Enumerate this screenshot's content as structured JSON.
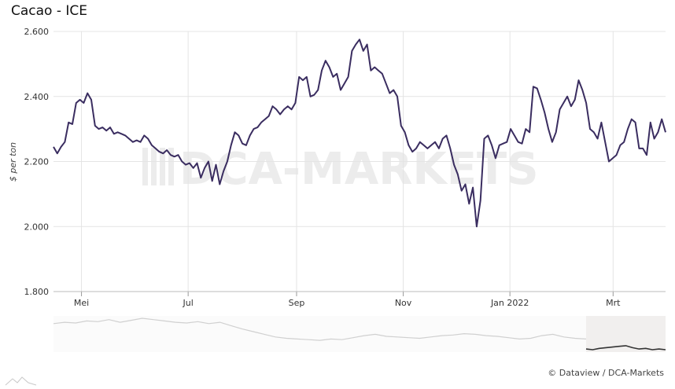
{
  "title": "Cacao - ICE",
  "credit": "© Dataview / DCA-Markets",
  "watermark": "DCA-MARKETS",
  "colors": {
    "line": "#3a2d60",
    "grid": "#e4e4e4",
    "navigator_line": "#d0d0d0",
    "navigator_window": "#f1efee",
    "navigator_selected_line": "#333333"
  },
  "chart_data": {
    "type": "line",
    "ylabel": "$ per ton",
    "ylim": [
      1800,
      2600
    ],
    "yticks": [
      1800,
      2000,
      2200,
      2400,
      2600
    ],
    "ytick_labels": [
      "1.800",
      "2.000",
      "2.200",
      "2.400",
      "2.600"
    ],
    "xtick_labels": [
      "Mei",
      "Jul",
      "Sep",
      "Nov",
      "Jan 2022",
      "Mrt"
    ],
    "grid": true,
    "x_start": "2021-04-15",
    "x_end": "2022-03-31",
    "series": [
      {
        "values": [
          2245,
          2225,
          2245,
          2260,
          2320,
          2315,
          2380,
          2390,
          2380,
          2410,
          2390,
          2310,
          2300,
          2305,
          2295,
          2305,
          2285,
          2290,
          2285,
          2280,
          2270,
          2260,
          2265,
          2260,
          2280,
          2270,
          2250,
          2240,
          2230,
          2225,
          2235,
          2220,
          2215,
          2220,
          2200,
          2190,
          2195,
          2180,
          2195,
          2150,
          2180,
          2200,
          2140,
          2190,
          2130,
          2170,
          2200,
          2250,
          2290,
          2280,
          2255,
          2250,
          2280,
          2300,
          2305,
          2320,
          2330,
          2340,
          2370,
          2360,
          2345,
          2360,
          2370,
          2360,
          2380,
          2460,
          2450,
          2460,
          2400,
          2405,
          2420,
          2480,
          2510,
          2490,
          2460,
          2470,
          2420,
          2440,
          2460,
          2540,
          2560,
          2575,
          2540,
          2560,
          2480,
          2490,
          2480,
          2470,
          2440,
          2410,
          2420,
          2400,
          2310,
          2290,
          2250,
          2230,
          2240,
          2260,
          2250,
          2240,
          2250,
          2260,
          2240,
          2270,
          2280,
          2240,
          2190,
          2160,
          2110,
          2130,
          2070,
          2120,
          2000,
          2080,
          2270,
          2280,
          2250,
          2210,
          2250,
          2255,
          2260,
          2300,
          2280,
          2260,
          2255,
          2300,
          2290,
          2430,
          2425,
          2390,
          2350,
          2300,
          2260,
          2290,
          2360,
          2380,
          2400,
          2370,
          2390,
          2450,
          2420,
          2380,
          2300,
          2290,
          2270,
          2320,
          2260,
          2200,
          2210,
          2220,
          2250,
          2260,
          2300,
          2330,
          2320,
          2240,
          2240,
          2220,
          2320,
          2270,
          2290,
          2330,
          2290
        ]
      }
    ],
    "navigator": {
      "history_values": [
        2680,
        2700,
        2690,
        2720,
        2710,
        2740,
        2700,
        2730,
        2760,
        2740,
        2720,
        2700,
        2690,
        2710,
        2680,
        2700,
        2650,
        2600,
        2560,
        2520,
        2480,
        2460,
        2450,
        2440,
        2430,
        2450,
        2440,
        2470,
        2500,
        2520,
        2490,
        2480,
        2470,
        2460,
        2480,
        2500,
        2510,
        2530,
        2520,
        2500,
        2490,
        2470,
        2450,
        2460,
        2500,
        2520,
        2480,
        2460,
        2450
      ],
      "selected_values": [
        2300,
        2290,
        2310,
        2320,
        2330,
        2340,
        2350,
        2320,
        2300,
        2310,
        2290,
        2300,
        2290
      ]
    }
  }
}
